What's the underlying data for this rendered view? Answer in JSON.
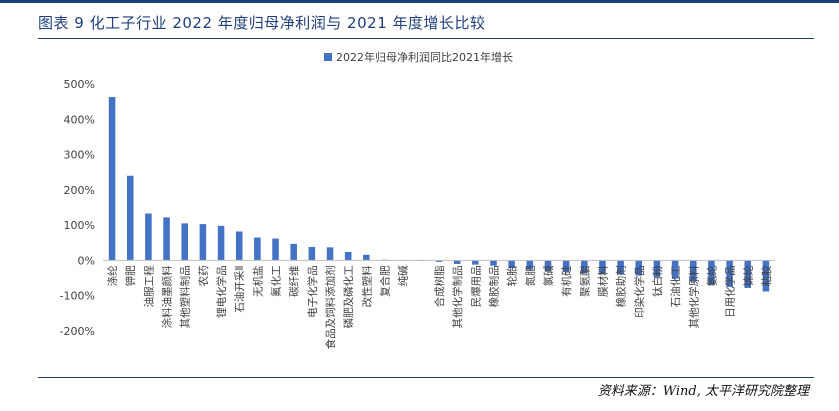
{
  "header": {
    "title": "图表 9 化工子行业 2022 年度归母净利润与 2021 年度增长比较"
  },
  "footer": {
    "source": "资料来源：Wind, 太平洋研究院整理"
  },
  "colors": {
    "bar": "#4472c4",
    "axis": "#bfbfbf",
    "text": "#404040",
    "accent": "#1f3f7a"
  },
  "chart_data": {
    "type": "bar",
    "title": "",
    "xlabel": "",
    "ylabel": "",
    "legend": {
      "label": "2022年归母净利润同比2021年增长",
      "position": "top"
    },
    "grid": false,
    "ylim": [
      -200,
      500
    ],
    "yticks": [
      -200,
      -100,
      0,
      100,
      200,
      300,
      400,
      500
    ],
    "ytick_labels": [
      "-200%",
      "-100%",
      "0%",
      "100%",
      "200%",
      "300%",
      "400%",
      "500%"
    ],
    "categories": [
      "涤纶",
      "钾肥",
      "油服工程",
      "涂料油墨颜料",
      "其他塑料制品",
      "农药",
      "锂电化学品",
      "石油开采Ⅱ",
      "无机盐",
      "氟化工",
      "碳纤维",
      "电子化学品",
      "食品及饲料添加剂",
      "磷肥及磷化工",
      "改性塑料",
      "复合肥",
      "纯碱",
      "",
      "合成树脂",
      "其他化学制品",
      "民爆用品",
      "橡胶制品",
      "轮胎",
      "氮肥",
      "氯碱",
      "有机硅",
      "聚氨酯",
      "膜材料",
      "橡胶助剂",
      "印染化学品",
      "钛白粉",
      "石油化工",
      "其他化学原料",
      "氨纶",
      "日用化学品",
      "锦纶",
      "粘胶"
    ],
    "values": [
      463,
      240,
      133,
      122,
      105,
      103,
      98,
      82,
      65,
      62,
      47,
      38,
      37,
      24,
      16,
      2,
      1,
      -1,
      -4,
      -10,
      -12,
      -15,
      -22,
      -26,
      -30,
      -33,
      -36,
      -38,
      -40,
      -43,
      -47,
      -52,
      -60,
      -70,
      -75,
      -78,
      -88
    ]
  }
}
